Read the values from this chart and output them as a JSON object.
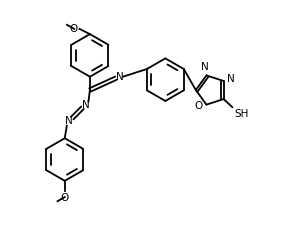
{
  "bg_color": "#ffffff",
  "line_color": "#000000",
  "line_width": 1.3,
  "font_size": 7.5,
  "figsize": [
    3.07,
    2.38
  ],
  "dpi": 100,
  "xlim": [
    0,
    10
  ],
  "ylim": [
    0,
    8
  ]
}
